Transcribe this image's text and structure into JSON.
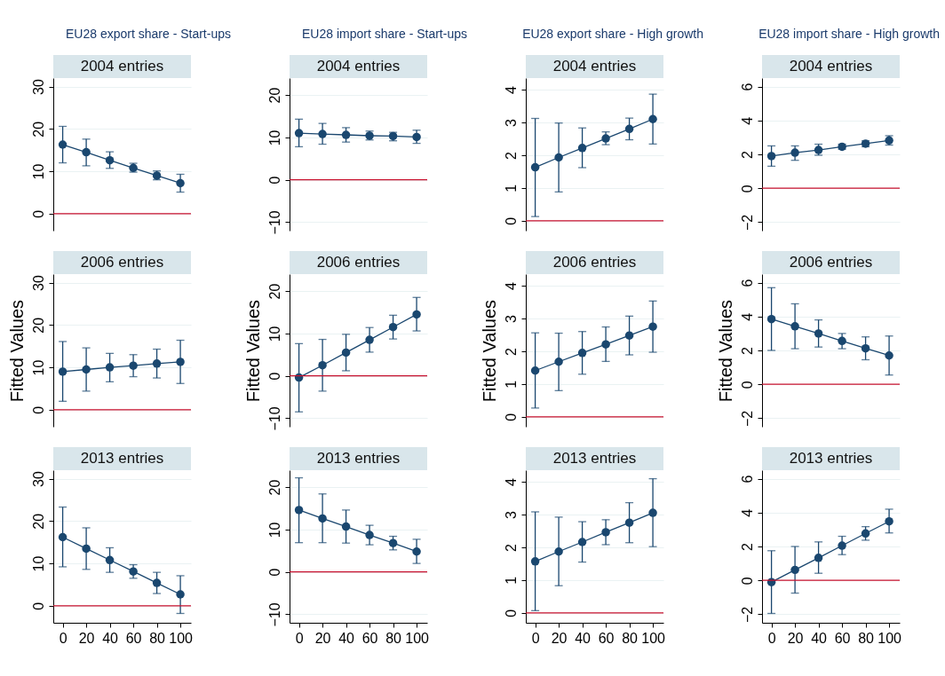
{
  "chart_data": [
    {
      "type": "line",
      "title": "EU28 export share - Start-ups",
      "subtitle": "2004 entries",
      "x": [
        0,
        20,
        40,
        60,
        80,
        100
      ],
      "xlim": [
        -8,
        109
      ],
      "ylim": [
        -4,
        32
      ],
      "yticks": [
        0,
        10,
        20,
        30
      ],
      "tick_labels": "y",
      "grid": "y",
      "marker": "circle",
      "ref_lines": [
        {
          "axis": "y",
          "value": 0,
          "color": "#c8102e"
        }
      ],
      "series": [
        {
          "color": "#1a476f",
          "values": [
            16.3,
            14.5,
            12.6,
            10.8,
            9.0,
            7.2
          ],
          "errors": [
            [
              12.0,
              20.6
            ],
            [
              11.3,
              17.6
            ],
            [
              10.7,
              14.6
            ],
            [
              9.8,
              11.9
            ],
            [
              8.0,
              10.1
            ],
            [
              5.1,
              9.3
            ]
          ]
        }
      ]
    },
    {
      "type": "line",
      "title": "EU28 import share - Start-ups",
      "subtitle": "2004 entries",
      "x": [
        0,
        20,
        40,
        60,
        80,
        100
      ],
      "xlim": [
        -8,
        109
      ],
      "ylim": [
        -12,
        24
      ],
      "yticks": [
        -10,
        0,
        10,
        20
      ],
      "tick_labels": "y",
      "grid": "y",
      "marker": "circle",
      "ref_lines": [
        {
          "axis": "y",
          "value": 0,
          "color": "#c8102e"
        }
      ],
      "series": [
        {
          "color": "#1a476f",
          "values": [
            11.0,
            10.8,
            10.6,
            10.4,
            10.3,
            10.1
          ],
          "errors": [
            [
              7.8,
              14.3
            ],
            [
              8.4,
              13.3
            ],
            [
              8.9,
              12.3
            ],
            [
              9.4,
              11.5
            ],
            [
              9.2,
              11.2
            ],
            [
              8.6,
              11.7
            ]
          ]
        }
      ]
    },
    {
      "type": "line",
      "title": "EU28 export share - High growth",
      "subtitle": "2004 entries",
      "x": [
        0,
        20,
        40,
        60,
        80,
        100
      ],
      "xlim": [
        -8,
        109
      ],
      "ylim": [
        -0.3,
        4.35
      ],
      "yticks": [
        0,
        1,
        2,
        3,
        4
      ],
      "tick_labels": "y",
      "grid": "y",
      "marker": "circle",
      "ref_lines": [
        {
          "axis": "y",
          "value": 0,
          "color": "#c8102e"
        }
      ],
      "series": [
        {
          "color": "#1a476f",
          "values": [
            1.63,
            1.93,
            2.22,
            2.51,
            2.8,
            3.1
          ],
          "errors": [
            [
              0.13,
              3.12
            ],
            [
              0.88,
              2.98
            ],
            [
              1.62,
              2.83
            ],
            [
              2.32,
              2.71
            ],
            [
              2.47,
              3.13
            ],
            [
              2.34,
              3.86
            ]
          ]
        }
      ]
    },
    {
      "type": "line",
      "title": "EU28 import share - High growth",
      "subtitle": "2004 entries",
      "x": [
        0,
        20,
        40,
        60,
        80,
        100
      ],
      "xlim": [
        -8,
        109
      ],
      "ylim": [
        -2.5,
        6.5
      ],
      "yticks": [
        -2,
        0,
        2,
        4,
        6
      ],
      "tick_labels": "y",
      "grid": "y",
      "marker": "circle",
      "ref_lines": [
        {
          "axis": "y",
          "value": 0,
          "color": "#c8102e"
        }
      ],
      "series": [
        {
          "color": "#1a476f",
          "values": [
            1.9,
            2.1,
            2.26,
            2.45,
            2.63,
            2.82
          ],
          "errors": [
            [
              1.3,
              2.5
            ],
            [
              1.65,
              2.5
            ],
            [
              1.95,
              2.6
            ],
            [
              2.3,
              2.6
            ],
            [
              2.45,
              2.8
            ],
            [
              2.55,
              3.1
            ]
          ]
        }
      ]
    },
    {
      "type": "line",
      "title": "2006 entries",
      "ylabel": "Fitted Values",
      "x": [
        0,
        20,
        40,
        60,
        80,
        100
      ],
      "xlim": [
        -8,
        109
      ],
      "ylim": [
        -4,
        32
      ],
      "yticks": [
        0,
        10,
        20,
        30
      ],
      "tick_labels": "y",
      "grid": "y",
      "marker": "circle",
      "ref_lines": [
        {
          "axis": "y",
          "value": 0,
          "color": "#c8102e"
        }
      ],
      "series": [
        {
          "color": "#1a476f",
          "values": [
            9.0,
            9.5,
            10.0,
            10.4,
            10.9,
            11.3
          ],
          "errors": [
            [
              2.0,
              16.1
            ],
            [
              4.4,
              14.6
            ],
            [
              6.6,
              13.3
            ],
            [
              7.8,
              13.0
            ],
            [
              7.5,
              14.3
            ],
            [
              6.2,
              16.4
            ]
          ]
        }
      ]
    },
    {
      "type": "line",
      "title": "2006 entries",
      "ylabel": "Fitted Values",
      "x": [
        0,
        20,
        40,
        60,
        80,
        100
      ],
      "xlim": [
        -8,
        109
      ],
      "ylim": [
        -12,
        24
      ],
      "yticks": [
        -10,
        0,
        10,
        20
      ],
      "tick_labels": "y",
      "grid": "y",
      "marker": "circle",
      "ref_lines": [
        {
          "axis": "y",
          "value": 0,
          "color": "#c8102e"
        }
      ],
      "series": [
        {
          "color": "#1a476f",
          "values": [
            -0.4,
            2.5,
            5.5,
            8.5,
            11.5,
            14.5
          ],
          "errors": [
            [
              -8.5,
              7.6
            ],
            [
              -3.6,
              8.6
            ],
            [
              1.2,
              9.8
            ],
            [
              5.6,
              11.4
            ],
            [
              8.7,
              14.3
            ],
            [
              10.6,
              18.5
            ]
          ]
        }
      ]
    },
    {
      "type": "line",
      "title": "2006 entries",
      "ylabel": "Fitted Values",
      "x": [
        0,
        20,
        40,
        60,
        80,
        100
      ],
      "xlim": [
        -8,
        109
      ],
      "ylim": [
        -0.3,
        4.35
      ],
      "yticks": [
        0,
        1,
        2,
        3,
        4
      ],
      "tick_labels": "y",
      "grid": "y",
      "marker": "circle",
      "ref_lines": [
        {
          "axis": "y",
          "value": 0,
          "color": "#c8102e"
        }
      ],
      "series": [
        {
          "color": "#1a476f",
          "values": [
            1.41,
            1.68,
            1.95,
            2.21,
            2.48,
            2.75
          ],
          "errors": [
            [
              0.27,
              2.56
            ],
            [
              0.8,
              2.55
            ],
            [
              1.3,
              2.6
            ],
            [
              1.69,
              2.74
            ],
            [
              1.89,
              3.07
            ],
            [
              1.97,
              3.53
            ]
          ]
        }
      ]
    },
    {
      "type": "line",
      "title": "2006 entries",
      "ylabel": "Fitted Values",
      "x": [
        0,
        20,
        40,
        60,
        80,
        100
      ],
      "xlim": [
        -8,
        109
      ],
      "ylim": [
        -2.5,
        6.5
      ],
      "yticks": [
        -2,
        0,
        2,
        4,
        6
      ],
      "tick_labels": "y",
      "grid": "y",
      "marker": "circle",
      "ref_lines": [
        {
          "axis": "y",
          "value": 0,
          "color": "#c8102e"
        }
      ],
      "series": [
        {
          "color": "#1a476f",
          "values": [
            3.85,
            3.42,
            3.0,
            2.56,
            2.12,
            1.7
          ],
          "errors": [
            [
              2.0,
              5.7
            ],
            [
              2.1,
              4.75
            ],
            [
              2.2,
              3.8
            ],
            [
              2.1,
              3.0
            ],
            [
              1.45,
              2.8
            ],
            [
              0.55,
              2.85
            ]
          ]
        }
      ]
    },
    {
      "type": "line",
      "title": "2013 entries",
      "x": [
        0,
        20,
        40,
        60,
        80,
        100
      ],
      "xlim": [
        -8,
        109
      ],
      "xticks": [
        0,
        20,
        40,
        60,
        80,
        100
      ],
      "ylim": [
        -4,
        32
      ],
      "yticks": [
        0,
        10,
        20,
        30
      ],
      "grid": "y",
      "marker": "circle",
      "ref_lines": [
        {
          "axis": "y",
          "value": 0,
          "color": "#c8102e"
        }
      ],
      "series": [
        {
          "color": "#1a476f",
          "values": [
            16.2,
            13.5,
            10.8,
            8.1,
            5.4,
            2.7
          ],
          "errors": [
            [
              9.2,
              23.3
            ],
            [
              8.6,
              18.4
            ],
            [
              7.9,
              13.7
            ],
            [
              6.5,
              9.7
            ],
            [
              2.9,
              7.9
            ],
            [
              -1.8,
              7.1
            ]
          ]
        }
      ]
    },
    {
      "type": "line",
      "title": "2013 entries",
      "x": [
        0,
        20,
        40,
        60,
        80,
        100
      ],
      "xlim": [
        -8,
        109
      ],
      "xticks": [
        0,
        20,
        40,
        60,
        80,
        100
      ],
      "ylim": [
        -12,
        24
      ],
      "yticks": [
        -10,
        0,
        10,
        20
      ],
      "grid": "y",
      "marker": "circle",
      "ref_lines": [
        {
          "axis": "y",
          "value": 0,
          "color": "#c8102e"
        }
      ],
      "series": [
        {
          "color": "#1a476f",
          "values": [
            14.6,
            12.6,
            10.7,
            8.7,
            6.8,
            4.8
          ],
          "errors": [
            [
              6.9,
              22.2
            ],
            [
              6.9,
              18.4
            ],
            [
              6.8,
              14.6
            ],
            [
              6.4,
              11.0
            ],
            [
              5.2,
              8.4
            ],
            [
              2.0,
              7.7
            ]
          ]
        }
      ]
    },
    {
      "type": "line",
      "title": "2013 entries",
      "x": [
        0,
        20,
        40,
        60,
        80,
        100
      ],
      "xlim": [
        -8,
        109
      ],
      "xticks": [
        0,
        20,
        40,
        60,
        80,
        100
      ],
      "ylim": [
        -0.3,
        4.35
      ],
      "yticks": [
        0,
        1,
        2,
        3,
        4
      ],
      "grid": "y",
      "marker": "circle",
      "ref_lines": [
        {
          "axis": "y",
          "value": 0,
          "color": "#c8102e"
        }
      ],
      "series": [
        {
          "color": "#1a476f",
          "values": [
            1.57,
            1.87,
            2.16,
            2.46,
            2.75,
            3.05
          ],
          "errors": [
            [
              0.07,
              3.08
            ],
            [
              0.83,
              2.92
            ],
            [
              1.55,
              2.78
            ],
            [
              2.08,
              2.84
            ],
            [
              2.14,
              3.36
            ],
            [
              2.02,
              4.09
            ]
          ]
        }
      ]
    },
    {
      "type": "line",
      "title": "2013 entries",
      "x": [
        0,
        20,
        40,
        60,
        80,
        100
      ],
      "xlim": [
        -8,
        109
      ],
      "xticks": [
        0,
        20,
        40,
        60,
        80,
        100
      ],
      "ylim": [
        -2.5,
        6.5
      ],
      "yticks": [
        -2,
        0,
        2,
        4,
        6
      ],
      "grid": "y",
      "marker": "circle",
      "ref_lines": [
        {
          "axis": "y",
          "value": 0,
          "color": "#c8102e"
        }
      ],
      "series": [
        {
          "color": "#1a476f",
          "values": [
            -0.1,
            0.62,
            1.33,
            2.05,
            2.77,
            3.48
          ],
          "errors": [
            [
              -1.95,
              1.75
            ],
            [
              -0.75,
              2.0
            ],
            [
              0.42,
              2.27
            ],
            [
              1.52,
              2.6
            ],
            [
              2.37,
              3.17
            ],
            [
              2.8,
              4.2
            ]
          ]
        }
      ]
    }
  ]
}
